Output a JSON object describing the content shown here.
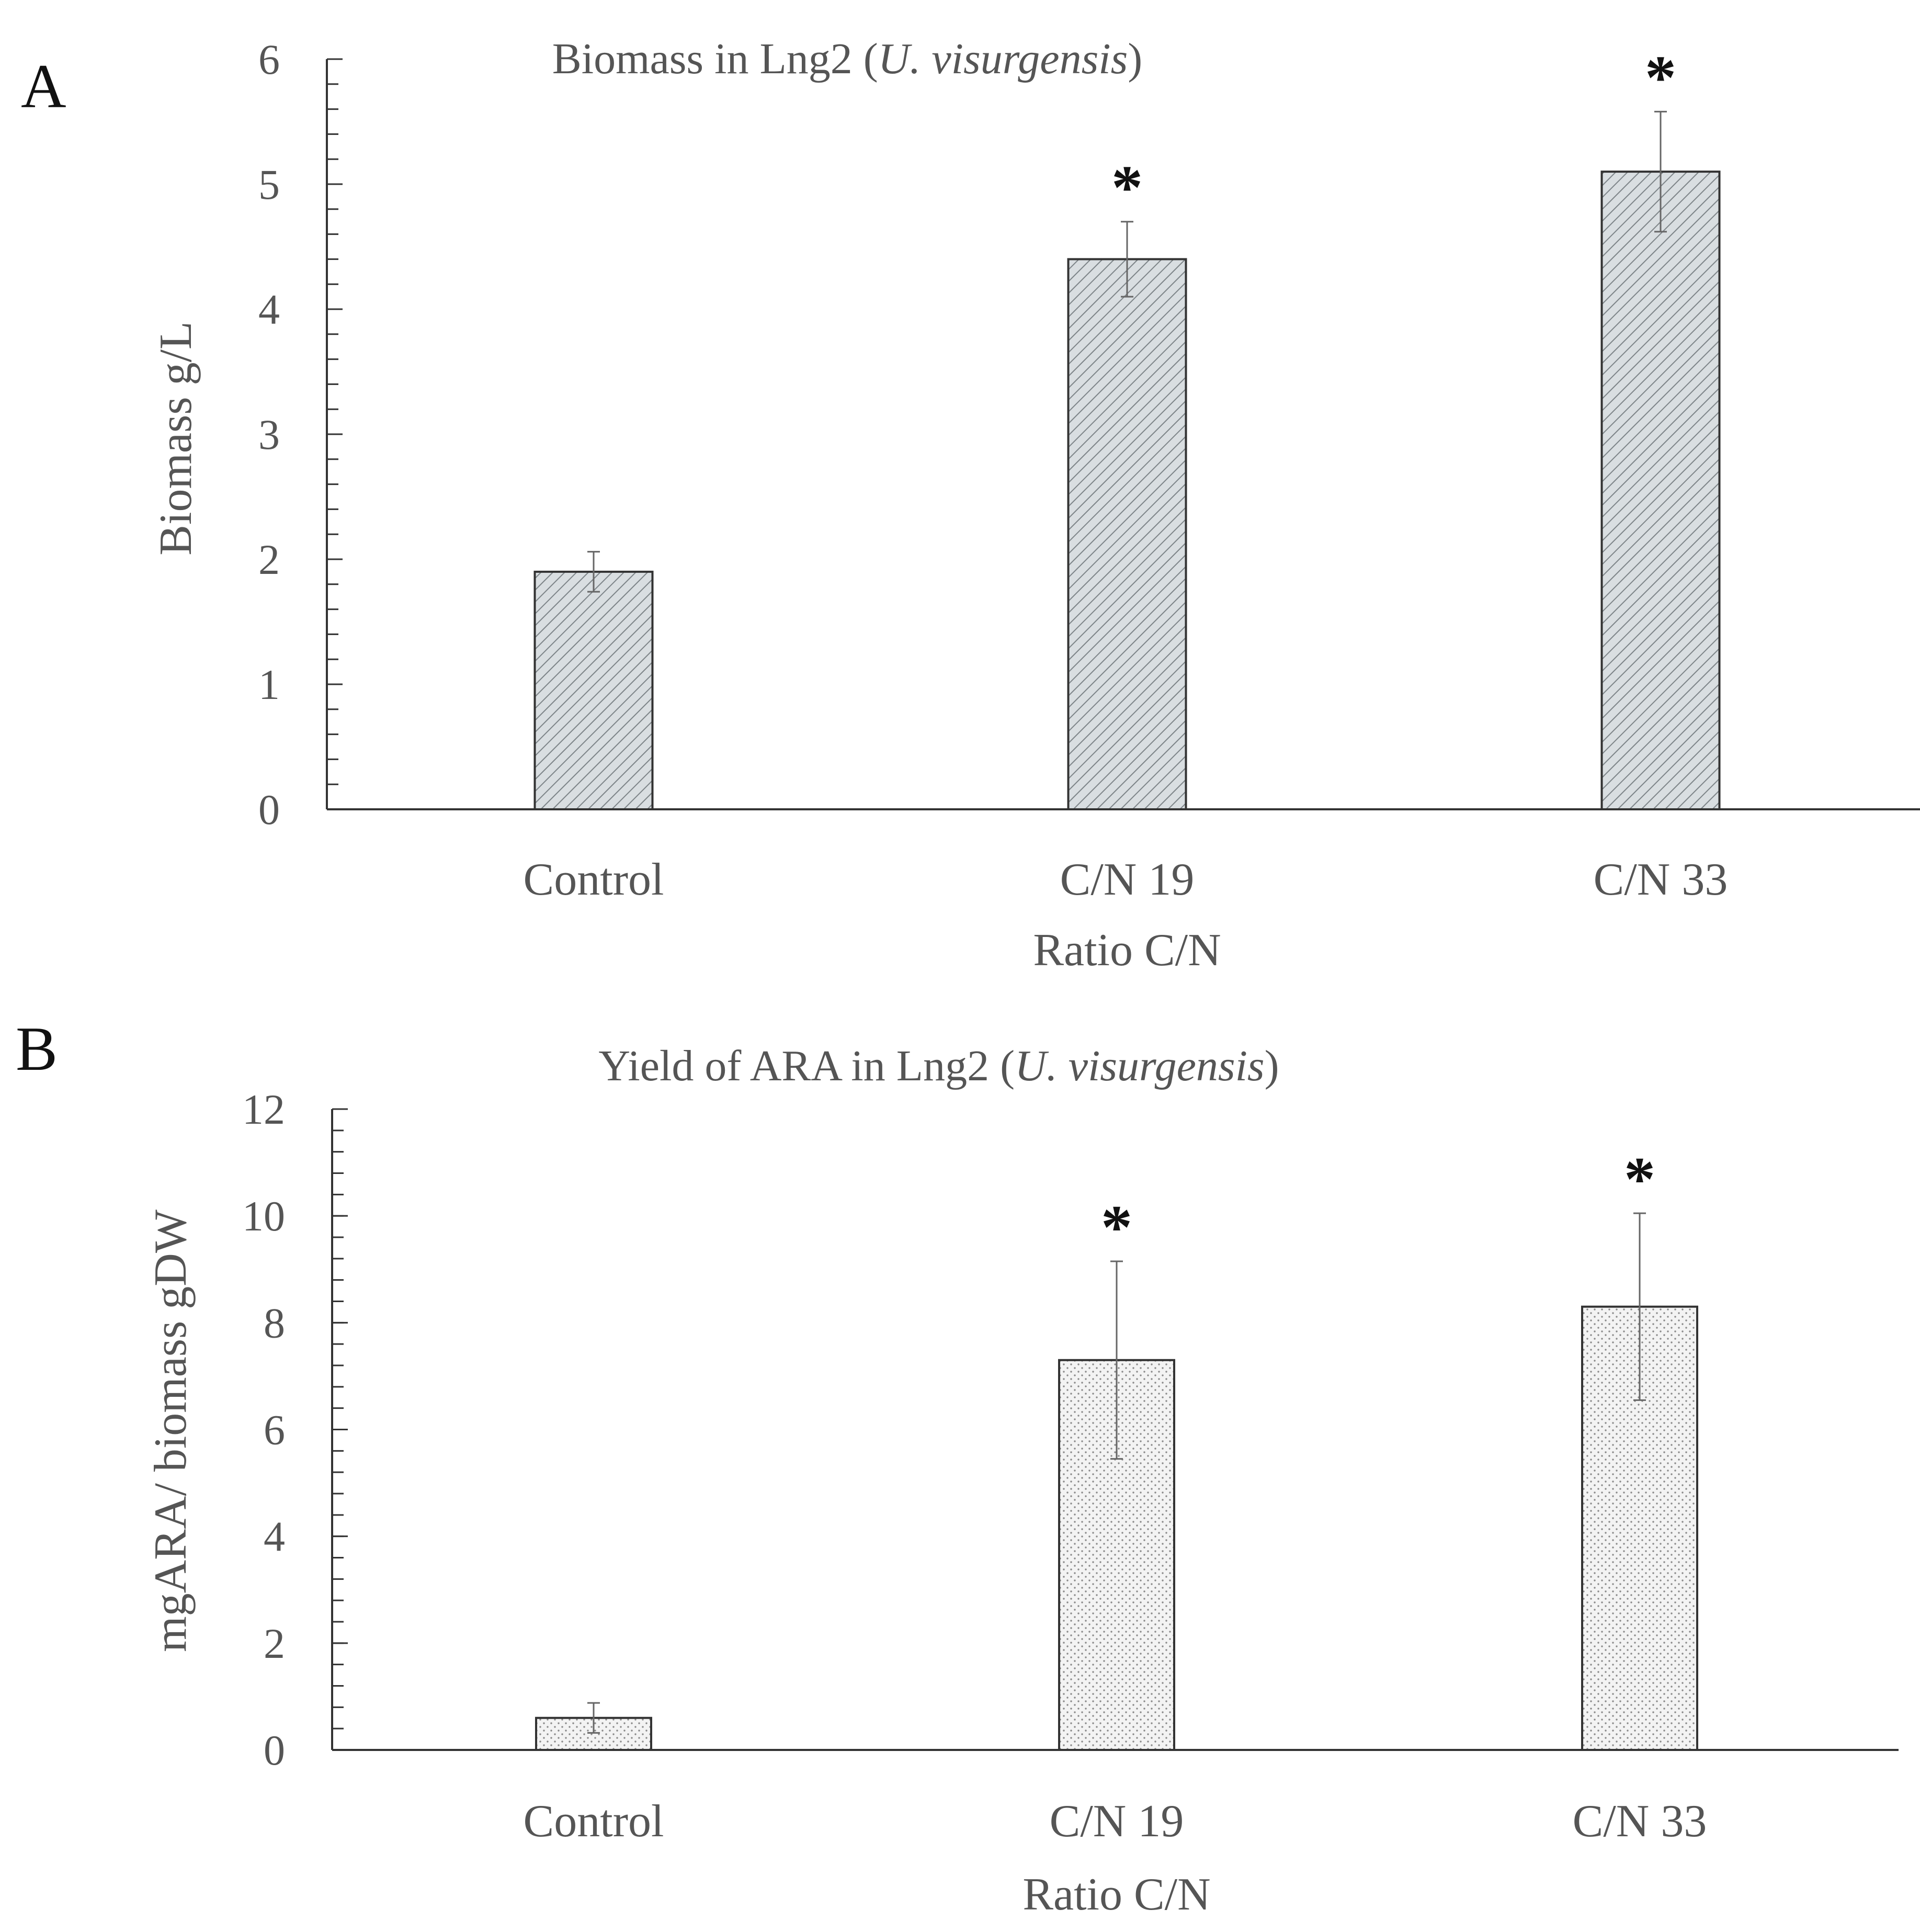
{
  "chart_data": [
    {
      "panel": "A",
      "type": "bar",
      "title": "Biomass in Lng2 (U. visurgensis)",
      "title_parts": [
        "Biomass in Lng2 (",
        "U. visurgensis",
        ")"
      ],
      "xlabel": "Ratio  C/N",
      "ylabel": "Biomass g/L",
      "categories": [
        "Control",
        "C/N 19",
        "C/N 33"
      ],
      "values": [
        1.9,
        4.4,
        5.1
      ],
      "error": [
        0.16,
        0.3,
        0.48
      ],
      "significance": [
        "",
        "*",
        "*"
      ],
      "ylim": [
        0,
        6
      ],
      "yticks": [
        0,
        1,
        2,
        3,
        4,
        5,
        6
      ],
      "minor_tick_step": 0.2,
      "bar_fill": "#d9dee1",
      "pattern": "diagonal-hatch",
      "grid": false
    },
    {
      "panel": "B",
      "type": "bar",
      "title": "Yield of ARA in Lng2 (U. visurgensis)",
      "title_parts": [
        "Yield of ARA in Lng2 (",
        "U. visurgensis",
        ")"
      ],
      "xlabel": "Ratio C/N",
      "ylabel": "mgARA/ biomass gDW",
      "categories": [
        "Control",
        "C/N 19",
        "C/N 33"
      ],
      "values": [
        0.6,
        7.3,
        8.3
      ],
      "error": [
        0.28,
        1.85,
        1.75
      ],
      "significance": [
        "",
        "*",
        "*"
      ],
      "ylim": [
        0,
        12
      ],
      "yticks": [
        0,
        2,
        4,
        6,
        8,
        10,
        12
      ],
      "minor_tick_step": 0.4,
      "bar_fill": "#f1f1f1",
      "pattern": "dots",
      "grid": false
    }
  ]
}
